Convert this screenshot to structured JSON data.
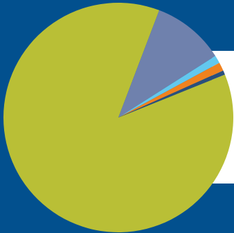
{
  "chart_data": {
    "type": "pie",
    "title": "",
    "slices": [
      {
        "value": 86.9,
        "color": "#b9bf36"
      },
      {
        "value": 10.2,
        "color": "#6f81ad"
      },
      {
        "value": 1.1,
        "color": "#63c8ee"
      },
      {
        "value": 1.2,
        "color": "#f0821f"
      },
      {
        "value": 0.6,
        "color": "#2a4f7c"
      }
    ],
    "start_angle_deg": 338,
    "direction": "clockwise"
  },
  "colors": {
    "background": "#02508e",
    "panel": "#ffffff"
  }
}
